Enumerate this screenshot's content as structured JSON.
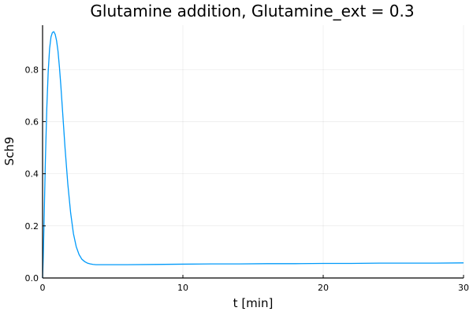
{
  "chart_data": {
    "type": "line",
    "title": "Glutamine addition, Glutamine_ext = 0.3",
    "xlabel": "t [min]",
    "ylabel": "Sch9",
    "xlim": [
      0,
      30
    ],
    "ylim": [
      0,
      0.97
    ],
    "xticks": [
      0,
      10,
      20,
      30
    ],
    "yticks": [
      0.0,
      0.2,
      0.4,
      0.6,
      0.8
    ],
    "ytick_labels": [
      "0.0",
      "0.2",
      "0.4",
      "0.6",
      "0.8"
    ],
    "grid": true,
    "legend": "none",
    "series": [
      {
        "color": "#009AFA",
        "x": [
          0,
          0.05,
          0.1,
          0.2,
          0.3,
          0.4,
          0.5,
          0.6,
          0.7,
          0.8,
          0.9,
          1.0,
          1.1,
          1.2,
          1.3,
          1.4,
          1.5,
          1.6,
          1.8,
          2.0,
          2.2,
          2.4,
          2.6,
          2.8,
          3.0,
          3.2,
          3.4,
          3.6,
          3.8,
          4.0,
          4.5,
          5.0,
          6.0,
          8.0,
          10.0,
          12.0,
          14.0,
          16.0,
          18.0,
          20.0,
          22.0,
          24.0,
          26.0,
          28.0,
          30.0
        ],
        "y": [
          0.0,
          0.08,
          0.2,
          0.45,
          0.65,
          0.79,
          0.88,
          0.925,
          0.942,
          0.945,
          0.935,
          0.91,
          0.87,
          0.81,
          0.74,
          0.66,
          0.58,
          0.5,
          0.36,
          0.25,
          0.17,
          0.12,
          0.09,
          0.072,
          0.063,
          0.057,
          0.054,
          0.052,
          0.051,
          0.051,
          0.051,
          0.051,
          0.051,
          0.052,
          0.053,
          0.054,
          0.054,
          0.055,
          0.055,
          0.056,
          0.056,
          0.057,
          0.057,
          0.057,
          0.058
        ]
      }
    ]
  }
}
